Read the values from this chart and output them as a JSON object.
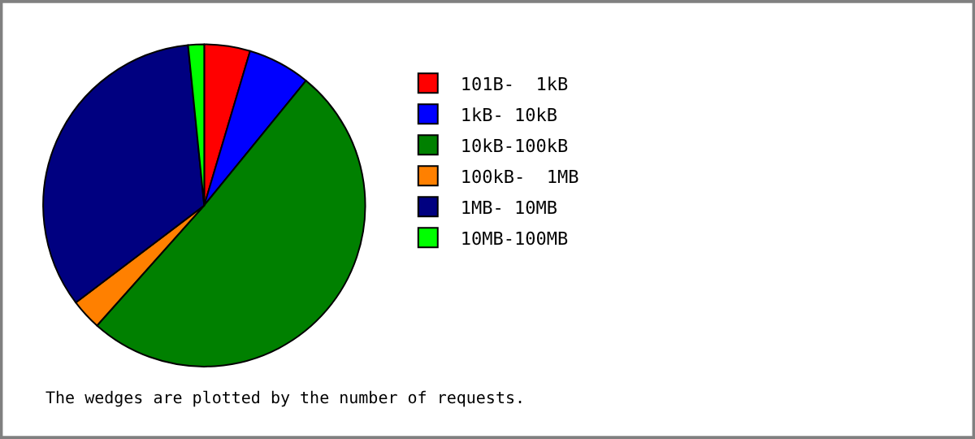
{
  "chart_data": {
    "type": "pie",
    "categories": [
      "101B-  1kB",
      "1kB- 10kB",
      "10kB-100kB",
      "100kB-  1MB",
      "1MB- 10MB",
      "10MB-100MB"
    ],
    "values": [
      4.6,
      6.3,
      50.7,
      3.1,
      33.7,
      1.6
    ],
    "colors": [
      "#ff0000",
      "#0000ff",
      "#008000",
      "#ff8000",
      "#000080",
      "#00ff00"
    ],
    "legend": "right",
    "annotations": [
      "The wedges are plotted by the number of requests."
    ]
  }
}
